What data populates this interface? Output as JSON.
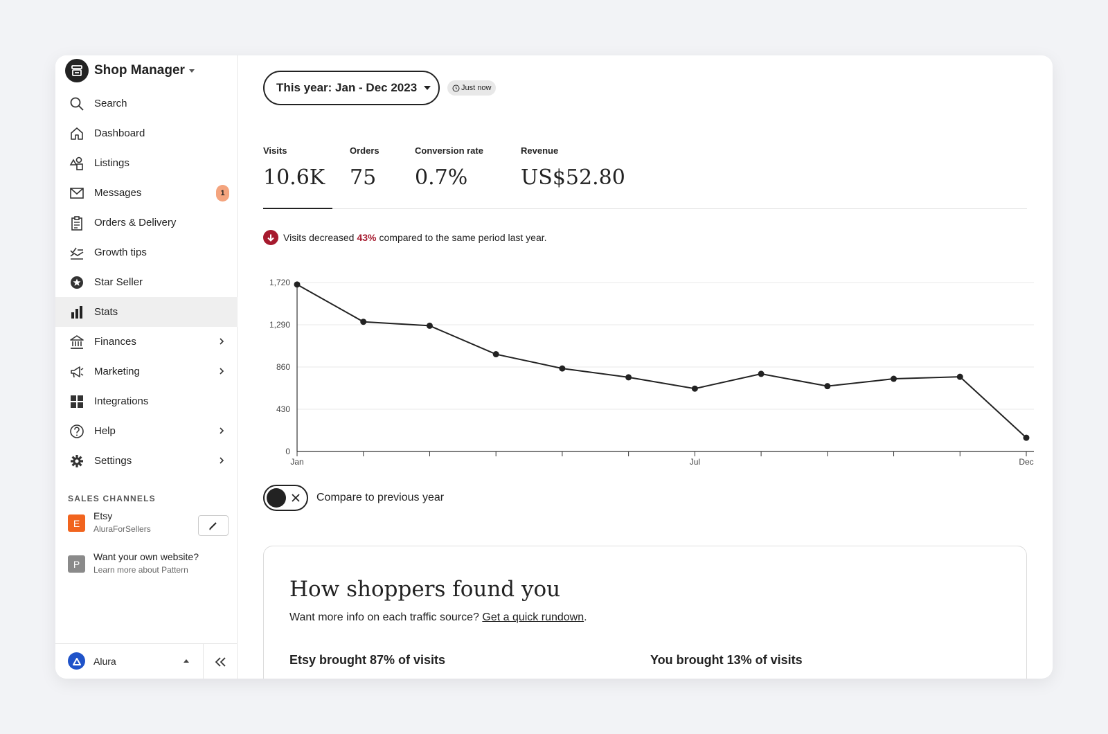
{
  "sidebar": {
    "title": "Shop Manager",
    "items": [
      {
        "label": "Search",
        "icon": "search-icon"
      },
      {
        "label": "Dashboard",
        "icon": "home-icon"
      },
      {
        "label": "Listings",
        "icon": "shapes-icon"
      },
      {
        "label": "Messages",
        "icon": "mail-icon",
        "badge": "1"
      },
      {
        "label": "Orders & Delivery",
        "icon": "clipboard-icon"
      },
      {
        "label": "Growth tips",
        "icon": "checklist-chart-icon"
      },
      {
        "label": "Star Seller",
        "icon": "star-badge-icon"
      },
      {
        "label": "Stats",
        "icon": "bar-chart-icon",
        "active": true
      },
      {
        "label": "Finances",
        "icon": "bank-icon",
        "chevron": true
      },
      {
        "label": "Marketing",
        "icon": "megaphone-icon",
        "chevron": true
      },
      {
        "label": "Integrations",
        "icon": "grid-icon"
      },
      {
        "label": "Help",
        "icon": "help-circle-icon",
        "chevron": true
      },
      {
        "label": "Settings",
        "icon": "gear-icon",
        "chevron": true
      }
    ],
    "sales_channels_label": "SALES CHANNELS",
    "channels": [
      {
        "letter": "E",
        "name": "Etsy",
        "sub": "AluraForSellers",
        "color": "#f1641e"
      },
      {
        "letter": "P",
        "name": "Want your own website?",
        "sub": "Learn more about Pattern",
        "color": "#8a8a8a"
      }
    ],
    "user": {
      "name": "Alura",
      "color": "#1f53c9"
    }
  },
  "main": {
    "date_range": "This year: Jan - Dec 2023",
    "updated": "Just now",
    "metrics": [
      {
        "label": "Visits",
        "value": "10.6K"
      },
      {
        "label": "Orders",
        "value": "75"
      },
      {
        "label": "Conversion rate",
        "value": "0.7%"
      },
      {
        "label": "Revenue",
        "value": "US$52.80"
      }
    ],
    "trend": {
      "prefix": "Visits decreased",
      "pct": "43%",
      "suffix": "compared to the same period last year.",
      "color": "#a61a2e"
    },
    "compare_label": "Compare to previous year",
    "card": {
      "title": "How shoppers found you",
      "sub_prefix": "Want more info on each traffic source?",
      "link": "Get a quick rundown",
      "sub_suffix": ".",
      "etsy_share": "Etsy brought 87% of visits",
      "you_share": "You brought 13% of visits"
    }
  },
  "chart_data": {
    "type": "line",
    "x": [
      "Jan",
      "Feb",
      "Mar",
      "Apr",
      "May",
      "Jun",
      "Jul",
      "Aug",
      "Sep",
      "Oct",
      "Nov",
      "Dec"
    ],
    "x_tick_labels": [
      "Jan",
      "",
      "",
      "",
      "",
      "",
      "Jul",
      "",
      "",
      "",
      "",
      "Dec"
    ],
    "series": [
      {
        "values": [
          1700,
          1320,
          1280,
          990,
          845,
          755,
          640,
          790,
          665,
          740,
          760,
          140
        ]
      }
    ],
    "y_ticks": [
      "0",
      "430",
      "860",
      "1,290",
      "1,720"
    ],
    "ylim": [
      0,
      1720
    ],
    "grid": true,
    "color": "#222222"
  }
}
